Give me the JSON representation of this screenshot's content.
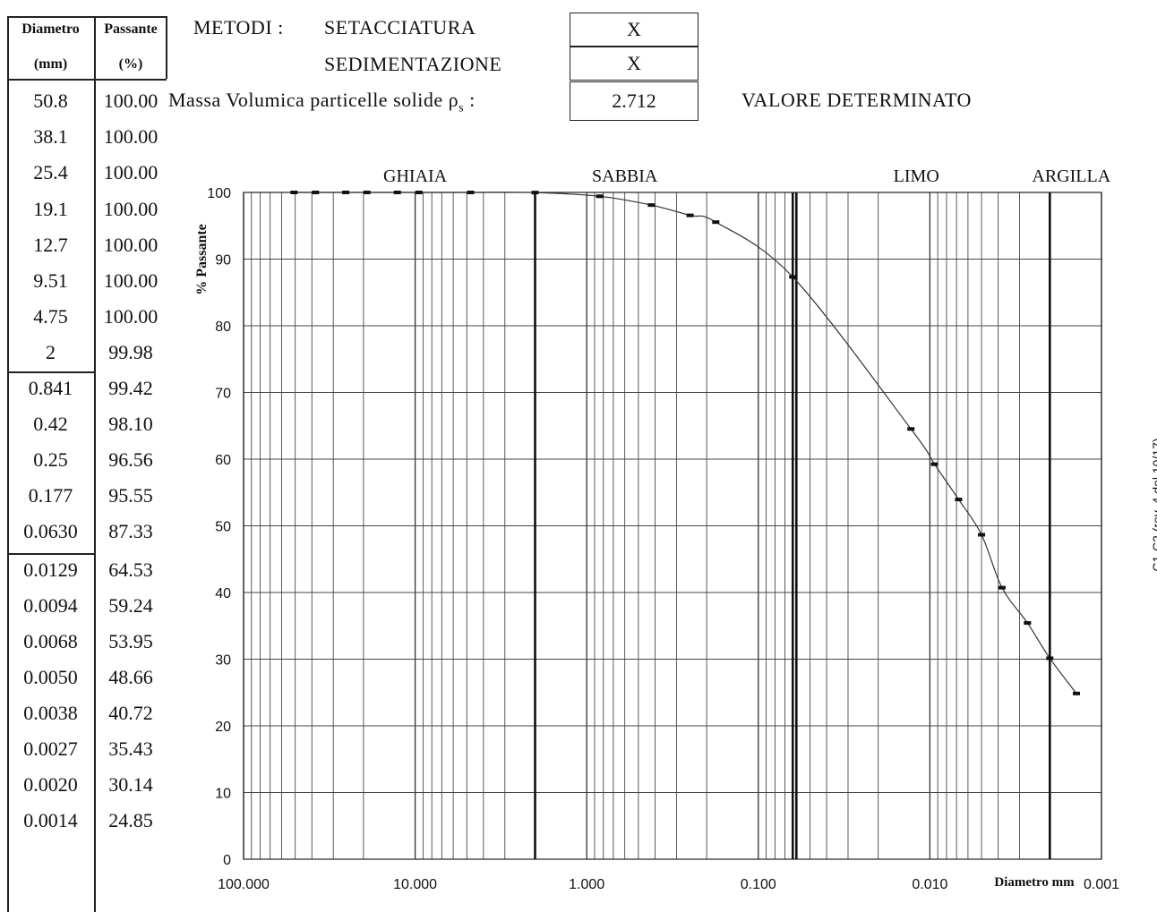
{
  "table": {
    "header_col1_line1": "Diametro",
    "header_col1_line2": "(mm)",
    "header_col2_line1": "Passante",
    "header_col2_line2": "(%)",
    "rows": [
      [
        "50.8",
        "100.00"
      ],
      [
        "38.1",
        "100.00"
      ],
      [
        "25.4",
        "100.00"
      ],
      [
        "19.1",
        "100.00"
      ],
      [
        "12.7",
        "100.00"
      ],
      [
        "9.51",
        "100.00"
      ],
      [
        "4.75",
        "100.00"
      ],
      [
        "2",
        "99.98"
      ],
      [
        "0.841",
        "99.42"
      ],
      [
        "0.42",
        "98.10"
      ],
      [
        "0.25",
        "96.56"
      ],
      [
        "0.177",
        "95.55"
      ],
      [
        "0.0630",
        "87.33"
      ],
      [
        "0.0129",
        "64.53"
      ],
      [
        "0.0094",
        "59.24"
      ],
      [
        "0.0068",
        "53.95"
      ],
      [
        "0.0050",
        "48.66"
      ],
      [
        "0.0038",
        "40.72"
      ],
      [
        "0.0027",
        "35.43"
      ],
      [
        "0.0020",
        "30.14"
      ],
      [
        "0.0014",
        "24.85"
      ]
    ]
  },
  "methods": {
    "label": "METODI :",
    "setacciatura": "SETACCIATURA",
    "sedimentazione": "SEDIMENTAZIONE",
    "setacciatura_value": "X",
    "sedimentazione_value": "X",
    "density_label": "Massa Volumica particelle solide ρ",
    "density_subscript": "s",
    "density_colon": " :",
    "density_value": "2.712",
    "density_note": "VALORE DETERMINATO"
  },
  "side_note": "C1-C2  (rev. 4 del 10/17)",
  "chart_data": {
    "type": "line",
    "xscale": "log",
    "x_reversed": true,
    "xlim": [
      100,
      0.001
    ],
    "ylim": [
      0,
      100
    ],
    "ylabel": "% Passante",
    "xlabel": "Diametro mm",
    "x_tick_labels": [
      "100.000",
      "10.000",
      "1.000",
      "0.100",
      "0.010",
      "0.001"
    ],
    "x_tick_values": [
      100,
      10,
      1,
      0.1,
      0.01,
      0.001
    ],
    "y_tick_labels": [
      "0",
      "10",
      "20",
      "30",
      "40",
      "50",
      "60",
      "70",
      "80",
      "90",
      "100"
    ],
    "y_tick_values": [
      0,
      10,
      20,
      30,
      40,
      50,
      60,
      70,
      80,
      90,
      100
    ],
    "zones": [
      {
        "label": "GHIAIA",
        "x": 10
      },
      {
        "label": "SABBIA",
        "x": 0.6
      },
      {
        "label": "LIMO",
        "x": 0.012
      },
      {
        "label": "ARGILLA",
        "x": 0.0015
      }
    ],
    "zone_boundaries": [
      2,
      0.063,
      0.06,
      0.002
    ],
    "grid": true,
    "series": [
      {
        "x": [
          50.8,
          38.1,
          25.4,
          19.1,
          12.7,
          9.51,
          4.75,
          2,
          0.841,
          0.42,
          0.25,
          0.177,
          0.063,
          0.0129,
          0.0094,
          0.0068,
          0.005,
          0.0038,
          0.0027,
          0.002,
          0.0014
        ],
        "y": [
          100,
          100,
          100,
          100,
          100,
          100,
          100,
          99.98,
          99.42,
          98.1,
          96.56,
          95.55,
          87.33,
          64.53,
          59.24,
          53.95,
          48.66,
          40.72,
          35.43,
          30.14,
          24.85
        ]
      }
    ]
  }
}
